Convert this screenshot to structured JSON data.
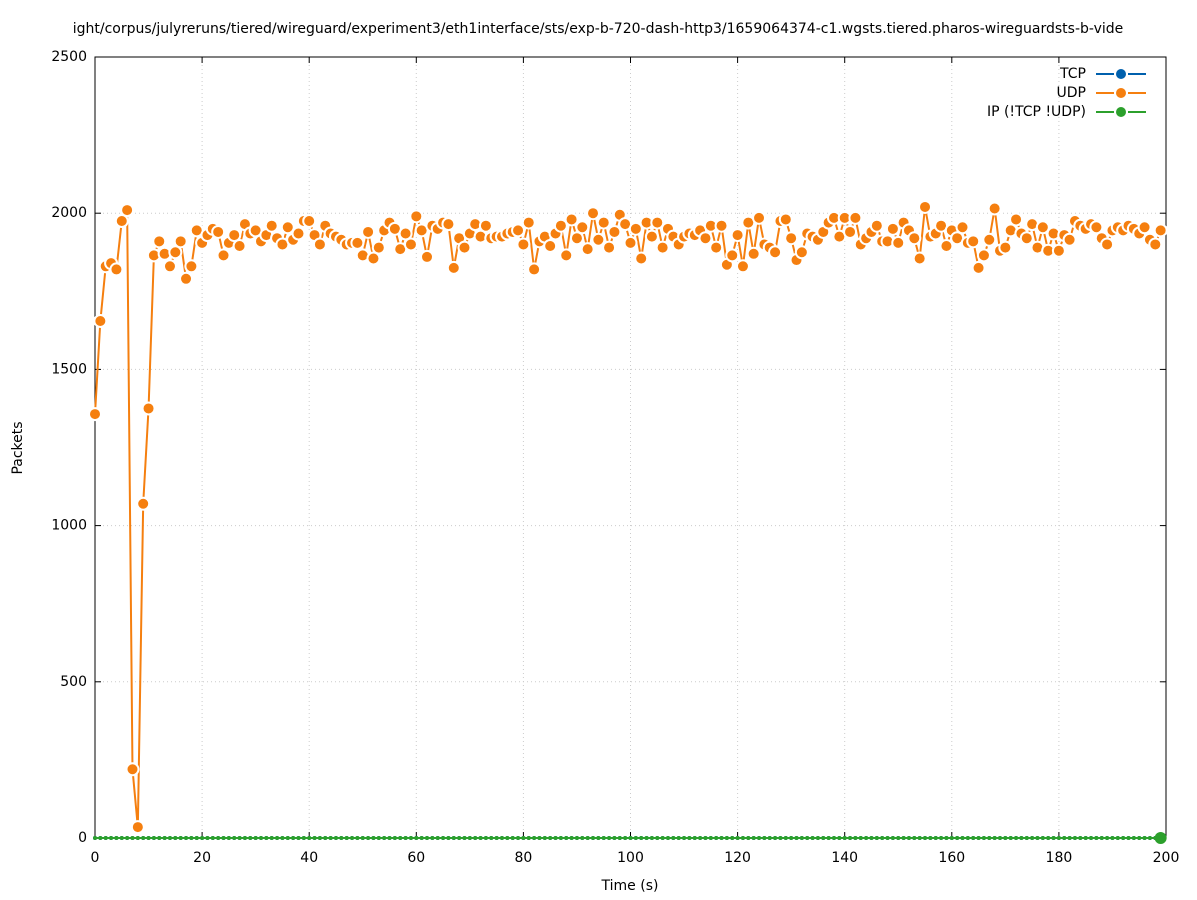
{
  "chart_data": {
    "type": "line",
    "title": "ight/corpus/julyreruns/tiered/wireguard/experiment3/eth1interface/sts/exp-b-720-dash-http3/1659064374-c1.wgsts.tiered.pharos-wireguardsts-b-vide",
    "x_label": "Time (s)",
    "y_label": "Packets",
    "xlim": [
      0,
      200
    ],
    "xticks": [
      0,
      20,
      40,
      60,
      80,
      100,
      120,
      140,
      160,
      180,
      200
    ],
    "ylim": [
      0,
      2500
    ],
    "yticks": [
      0,
      500,
      1000,
      1500,
      2000,
      2500
    ],
    "grid": true,
    "legend": "upper right",
    "x": [
      0,
      1,
      2,
      3,
      4,
      5,
      6,
      7,
      8,
      9,
      10,
      11,
      12,
      13,
      14,
      15,
      16,
      17,
      18,
      19,
      20,
      21,
      22,
      23,
      24,
      25,
      26,
      27,
      28,
      29,
      30,
      31,
      32,
      33,
      34,
      35,
      36,
      37,
      38,
      39,
      40,
      41,
      42,
      43,
      44,
      45,
      46,
      47,
      48,
      49,
      50,
      51,
      52,
      53,
      54,
      55,
      56,
      57,
      58,
      59,
      60,
      61,
      62,
      63,
      64,
      65,
      66,
      67,
      68,
      69,
      70,
      71,
      72,
      73,
      74,
      75,
      76,
      77,
      78,
      79,
      80,
      81,
      82,
      83,
      84,
      85,
      86,
      87,
      88,
      89,
      90,
      91,
      92,
      93,
      94,
      95,
      96,
      97,
      98,
      99,
      100,
      101,
      102,
      103,
      104,
      105,
      106,
      107,
      108,
      109,
      110,
      111,
      112,
      113,
      114,
      115,
      116,
      117,
      118,
      119,
      120,
      121,
      122,
      123,
      124,
      125,
      126,
      127,
      128,
      129,
      130,
      131,
      132,
      133,
      134,
      135,
      136,
      137,
      138,
      139,
      140,
      141,
      142,
      143,
      144,
      145,
      146,
      147,
      148,
      149,
      150,
      151,
      152,
      153,
      154,
      155,
      156,
      157,
      158,
      159,
      160,
      161,
      162,
      163,
      164,
      165,
      166,
      167,
      168,
      169,
      170,
      171,
      172,
      173,
      174,
      175,
      176,
      177,
      178,
      179,
      180,
      181,
      182,
      183,
      184,
      185,
      186,
      187,
      188,
      189,
      190,
      191,
      192,
      193,
      194,
      195,
      196,
      197,
      198,
      199
    ],
    "series": [
      {
        "name": "TCP",
        "color": "#0060ad",
        "values": [
          0,
          0,
          0,
          0,
          0,
          0,
          0,
          0,
          0,
          0,
          0,
          0,
          0,
          0,
          0,
          0,
          0,
          0,
          0,
          0,
          0,
          0,
          0,
          0,
          0,
          0,
          0,
          0,
          0,
          0,
          0,
          0,
          0,
          0,
          0,
          0,
          0,
          0,
          0,
          0,
          0,
          0,
          0,
          0,
          0,
          0,
          0,
          0,
          0,
          0,
          0,
          0,
          0,
          0,
          0,
          0,
          0,
          0,
          0,
          0,
          0,
          0,
          0,
          0,
          0,
          0,
          0,
          0,
          0,
          0,
          0,
          0,
          0,
          0,
          0,
          0,
          0,
          0,
          0,
          0,
          0,
          0,
          0,
          0,
          0,
          0,
          0,
          0,
          0,
          0,
          0,
          0,
          0,
          0,
          0,
          0,
          0,
          0,
          0,
          0,
          0,
          0,
          0,
          0,
          0,
          0,
          0,
          0,
          0,
          0,
          0,
          0,
          0,
          0,
          0,
          0,
          0,
          0,
          0,
          0,
          0,
          0,
          0,
          0,
          0,
          0,
          0,
          0,
          0,
          0,
          0,
          0,
          0,
          0,
          0,
          0,
          0,
          0,
          0,
          0,
          0,
          0,
          0,
          0,
          0,
          0,
          0,
          0,
          0,
          0,
          0,
          0,
          0,
          0,
          0,
          0,
          0,
          0,
          0,
          0,
          0,
          0,
          0,
          0,
          0,
          0,
          0,
          0,
          0,
          0,
          0,
          0,
          0,
          0,
          0,
          0,
          0,
          0,
          0,
          0,
          0,
          0,
          0,
          0,
          0,
          0,
          0,
          0,
          0,
          0,
          0,
          0,
          0,
          0,
          0,
          0,
          0,
          0,
          0,
          0
        ]
      },
      {
        "name": "UDP",
        "color": "#f57f0f",
        "values": [
          1357,
          1655,
          1830,
          1840,
          1820,
          1975,
          2010,
          220,
          35,
          1070,
          1375,
          1865,
          1910,
          1870,
          1830,
          1875,
          1910,
          1790,
          1830,
          1945,
          1905,
          1930,
          1950,
          1940,
          1865,
          1905,
          1930,
          1895,
          1965,
          1935,
          1945,
          1910,
          1930,
          1960,
          1920,
          1900,
          1955,
          1915,
          1935,
          1975,
          1975,
          1930,
          1900,
          1960,
          1935,
          1925,
          1915,
          1900,
          1905,
          1905,
          1865,
          1940,
          1855,
          1890,
          1945,
          1970,
          1950,
          1885,
          1935,
          1900,
          1990,
          1945,
          1860,
          1960,
          1950,
          1970,
          1965,
          1825,
          1920,
          1890,
          1935,
          1965,
          1925,
          1960,
          1920,
          1925,
          1925,
          1935,
          1940,
          1945,
          1900,
          1970,
          1820,
          1910,
          1925,
          1895,
          1935,
          1960,
          1865,
          1980,
          1920,
          1955,
          1885,
          2000,
          1915,
          1970,
          1890,
          1940,
          1995,
          1965,
          1905,
          1950,
          1855,
          1970,
          1925,
          1970,
          1890,
          1950,
          1925,
          1900,
          1925,
          1935,
          1930,
          1945,
          1920,
          1960,
          1890,
          1960,
          1835,
          1865,
          1930,
          1830,
          1970,
          1870,
          1985,
          1900,
          1890,
          1875,
          1975,
          1980,
          1920,
          1850,
          1875,
          1935,
          1925,
          1915,
          1940,
          1970,
          1985,
          1925,
          1985,
          1940,
          1985,
          1900,
          1920,
          1940,
          1960,
          1910,
          1910,
          1950,
          1905,
          1970,
          1945,
          1920,
          1855,
          2020,
          1925,
          1935,
          1960,
          1895,
          1945,
          1920,
          1955,
          1905,
          1910,
          1825,
          1865,
          1915,
          2015,
          1880,
          1890,
          1945,
          1980,
          1935,
          1920,
          1965,
          1890,
          1955,
          1880,
          1935,
          1880,
          1930,
          1915,
          1975,
          1960,
          1950,
          1965,
          1955,
          1920,
          1900,
          1945,
          1955,
          1945,
          1960,
          1950,
          1935,
          1955,
          1915,
          1900,
          1945
        ]
      },
      {
        "name": "IP (!TCP  !UDP)",
        "color": "#2ca02c",
        "values": [
          0,
          0,
          0,
          0,
          0,
          0,
          0,
          0,
          0,
          0,
          0,
          0,
          0,
          0,
          0,
          0,
          0,
          0,
          0,
          0,
          0,
          0,
          0,
          0,
          0,
          0,
          0,
          0,
          0,
          0,
          0,
          0,
          0,
          0,
          0,
          0,
          0,
          0,
          0,
          0,
          0,
          0,
          0,
          0,
          0,
          0,
          0,
          0,
          0,
          0,
          0,
          0,
          0,
          0,
          0,
          0,
          0,
          0,
          0,
          0,
          0,
          0,
          0,
          0,
          0,
          0,
          0,
          0,
          0,
          0,
          0,
          0,
          0,
          0,
          0,
          0,
          0,
          0,
          0,
          0,
          0,
          0,
          0,
          0,
          0,
          0,
          0,
          0,
          0,
          0,
          0,
          0,
          0,
          0,
          0,
          0,
          0,
          0,
          0,
          0,
          0,
          0,
          0,
          0,
          0,
          0,
          0,
          0,
          0,
          0,
          0,
          0,
          0,
          0,
          0,
          0,
          0,
          0,
          0,
          0,
          0,
          0,
          0,
          0,
          0,
          0,
          0,
          0,
          0,
          0,
          0,
          0,
          0,
          0,
          0,
          0,
          0,
          0,
          0,
          0,
          0,
          0,
          0,
          0,
          0,
          0,
          0,
          0,
          0,
          0,
          0,
          0,
          0,
          0,
          0,
          0,
          0,
          0,
          0,
          0,
          0,
          0,
          0,
          0,
          0,
          0,
          0,
          0,
          0,
          0,
          0,
          0,
          0,
          0,
          0,
          0,
          0,
          0,
          0,
          0,
          0,
          0,
          0,
          0,
          0,
          0,
          0,
          0,
          0,
          0,
          0,
          0,
          0,
          0,
          0,
          0,
          0,
          0,
          0,
          0
        ]
      }
    ]
  }
}
